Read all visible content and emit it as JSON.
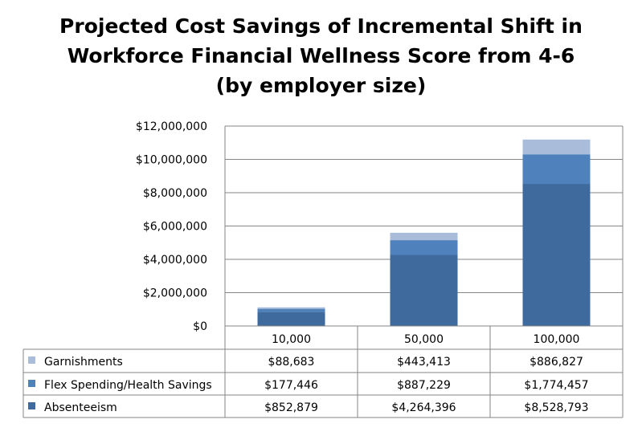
{
  "chart_data": {
    "type": "bar",
    "stacked": true,
    "title_lines": [
      "Projected Cost Savings of Incremental Shift in",
      "Workforce Financial Wellness Score from 4-6",
      "(by employer size)"
    ],
    "categories": [
      "10,000",
      "50,000",
      "100,000"
    ],
    "ylim": [
      0,
      12000000
    ],
    "yticks": [
      "$0",
      "$2,000,000",
      "$4,000,000",
      "$6,000,000",
      "$8,000,000",
      "$10,000,000",
      "$12,000,000"
    ],
    "grid": true,
    "legend": "data-table",
    "series": [
      {
        "name": "Absenteeism",
        "color": "#3F6A9E",
        "values": [
          852879,
          4264396,
          8528793
        ],
        "labels": [
          "$852,879",
          "$4,264,396",
          "$8,528,793"
        ]
      },
      {
        "name": "Flex Spending/Health Savings",
        "color": "#4F81BD",
        "values": [
          177446,
          887229,
          1774457
        ],
        "labels": [
          "$177,446",
          "$887,229",
          "$1,774,457"
        ]
      },
      {
        "name": "Garnishments",
        "color": "#A9BCD9",
        "values": [
          88683,
          443413,
          886827
        ],
        "labels": [
          "$88,683",
          "$443,413",
          "$886,827"
        ]
      }
    ]
  }
}
